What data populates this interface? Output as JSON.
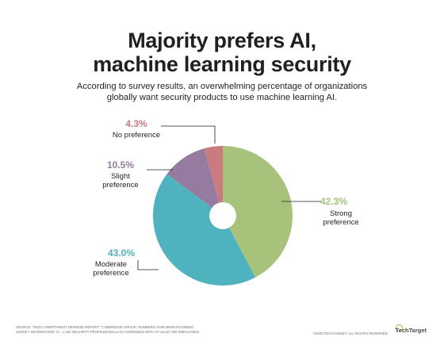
{
  "title_line1": "Majority prefers AI,",
  "title_line2": "machine learning security",
  "subtitle_line1": "According to survey results, an overwhelming percentage of organizations",
  "subtitle_line2": "globally want security products to use machine learning AI.",
  "chart_data": {
    "type": "pie",
    "style": "donut",
    "slices": [
      {
        "pct_label": "42.3%",
        "value": 42.3,
        "label_lines": [
          "Strong",
          "preference"
        ],
        "color": "#a6c27b"
      },
      {
        "pct_label": "43.0%",
        "value": 43.0,
        "label_lines": [
          "Moderate",
          "preference"
        ],
        "color": "#4fb3bf"
      },
      {
        "pct_label": "10.5%",
        "value": 10.5,
        "label_lines": [
          "Slight",
          "preference"
        ],
        "color": "#957ba0"
      },
      {
        "pct_label": "4.3%",
        "value": 4.3,
        "label_lines": [
          "No preference"
        ],
        "color": "#c97b80"
      }
    ]
  },
  "footer_source_line1": "Source: \"2020 Cyberthreat Defense Report\" Cyberedge Group; numbers have been rounded",
  "footer_source_line2": "Survey information: N = 1,200 security professionals in companies with at least 500 employees",
  "copyright": "©2020 TechTarget. All rights reserved.",
  "logo_text": "TechTarget"
}
